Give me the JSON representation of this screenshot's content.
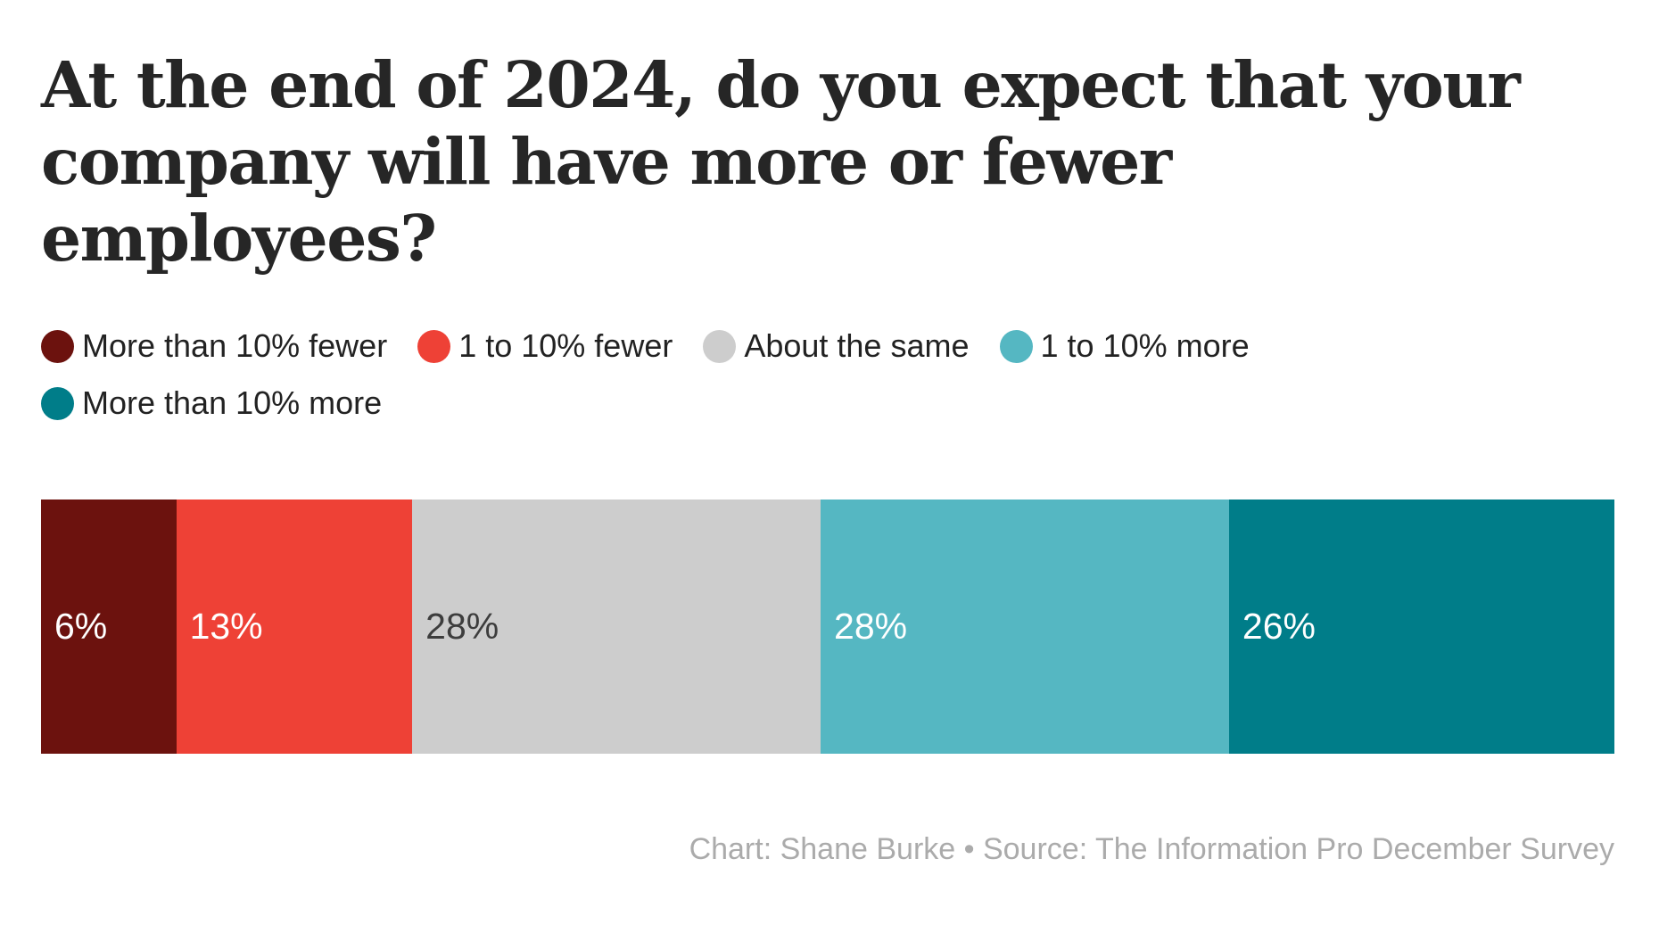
{
  "title": {
    "text": "At the end of 2024, do you expect that your company will have more or fewer employees?",
    "lines": [
      "At the end of 2024, do you expect that your",
      "company will have more or fewer",
      "employees?"
    ]
  },
  "legend": {
    "items": [
      {
        "label": "More than 10% fewer",
        "color": "#6c120e"
      },
      {
        "label": "1 to 10% fewer",
        "color": "#ee4136"
      },
      {
        "label": "About the same",
        "color": "#cdcdcd"
      },
      {
        "label": "1 to 10% more",
        "color": "#55b7c2"
      },
      {
        "label": "More than 10% more",
        "color": "#007d89"
      }
    ]
  },
  "chart_data": {
    "type": "bar",
    "variant": "horizontal-stacked-percentage",
    "title": "At the end of 2024, do you expect that your company will have more or fewer employees?",
    "categories": [
      "More than 10% fewer",
      "1 to 10% fewer",
      "About the same",
      "1 to 10% more",
      "More than 10% more"
    ],
    "values": [
      6,
      13,
      28,
      28,
      26
    ],
    "value_labels": [
      "6%",
      "13%",
      "28%",
      "28%",
      "26%"
    ],
    "unit": "%",
    "segment_colors": [
      "#6c120e",
      "#ee4136",
      "#cdcdcd",
      "#55b7c2",
      "#007d89"
    ],
    "label_colors": [
      "#ffffff",
      "#ffffff",
      "#3d3d3d",
      "#ffffff",
      "#ffffff"
    ],
    "legend_position": "top",
    "grid": false,
    "axes": false
  },
  "footer": {
    "text": "Chart: Shane Burke • Source: The Information Pro December Survey"
  }
}
